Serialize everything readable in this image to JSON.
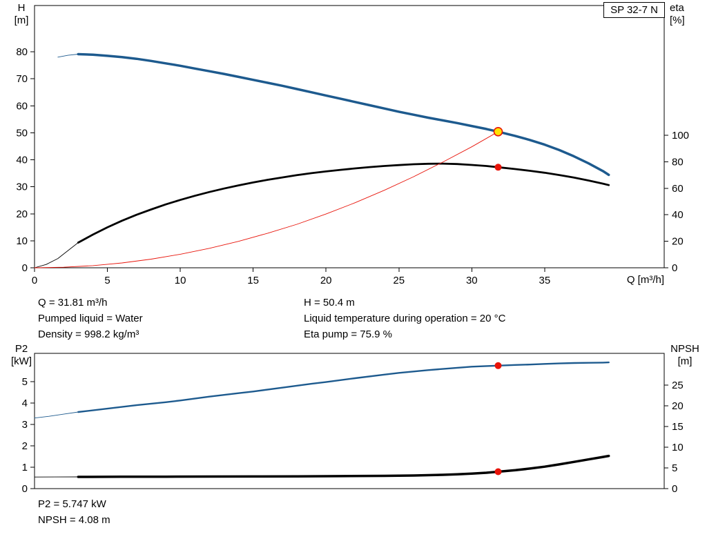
{
  "pump_box": {
    "label": "SP 32-7 N"
  },
  "axis_labels": {
    "h": "H",
    "h_unit": "[m]",
    "eta": "eta",
    "eta_unit": "[%]",
    "q": "Q [m³/h]",
    "p2": "P2",
    "p2_unit": "[kW]",
    "npsh": "NPSH",
    "npsh_unit": "[m]"
  },
  "operating_point_info": {
    "q": "Q = 31.81 m³/h",
    "h": "H = 50.4 m",
    "pumped_liquid": "Pumped liquid = Water",
    "liquid_temp": "Liquid temperature during operation = 20 °C",
    "density": "Density = 998.2 kg/m³",
    "eta_pump": "Eta pump = 75.9 %"
  },
  "power_info": {
    "p2": "P2 = 5.747 kW",
    "npsh": "NPSH = 4.08 m"
  },
  "colors": {
    "curve_blue": "#1d5a8e",
    "curve_red": "#e81309",
    "marker_yellow": "#ffe200",
    "axis": "#000000"
  },
  "chart_data": [
    {
      "name": "hq-eta-chart",
      "type": "line",
      "title": "SP 32-7 N",
      "x_axis": {
        "label": "Q [m³/h]",
        "min": 0,
        "max": 43.2,
        "ticks": [
          0,
          5,
          10,
          15,
          20,
          25,
          30,
          35
        ],
        "show_labels": true
      },
      "left_axis": {
        "label": "H [m]",
        "min": 0,
        "max": 80,
        "ticks": [
          0,
          10,
          20,
          30,
          40,
          50,
          60,
          70,
          80
        ]
      },
      "right_axis": {
        "label": "eta [%]",
        "min": 0,
        "max": 100,
        "ticks": [
          0,
          20,
          40,
          60,
          80,
          100
        ]
      },
      "series": [
        {
          "name": "head",
          "axis": "left",
          "color": "#1d5a8e",
          "width": 3.5,
          "thin_width": 0.9,
          "thin_points": [
            [
              1.6,
              78.0
            ],
            [
              2.3,
              78.7
            ],
            [
              3,
              79.1
            ]
          ],
          "points": [
            [
              3,
              79.1
            ],
            [
              4,
              78.9
            ],
            [
              5,
              78.5
            ],
            [
              6,
              78.0
            ],
            [
              7,
              77.4
            ],
            [
              8,
              76.6
            ],
            [
              9,
              75.7
            ],
            [
              10,
              74.8
            ],
            [
              11,
              73.8
            ],
            [
              12,
              72.8
            ],
            [
              13,
              71.8
            ],
            [
              14,
              70.7
            ],
            [
              15,
              69.6
            ],
            [
              16,
              68.5
            ],
            [
              17,
              67.4
            ],
            [
              18,
              66.2
            ],
            [
              19,
              65.0
            ],
            [
              20,
              63.8
            ],
            [
              21,
              62.6
            ],
            [
              22,
              61.4
            ],
            [
              23,
              60.2
            ],
            [
              24,
              59.0
            ],
            [
              25,
              57.8
            ],
            [
              26,
              56.7
            ],
            [
              27,
              55.6
            ],
            [
              28,
              54.6
            ],
            [
              29,
              53.6
            ],
            [
              30,
              52.5
            ],
            [
              31,
              51.4
            ],
            [
              31.81,
              50.4
            ],
            [
              33,
              48.8
            ],
            [
              34,
              47.3
            ],
            [
              35,
              45.6
            ],
            [
              36,
              43.6
            ],
            [
              37,
              41.3
            ],
            [
              38,
              38.7
            ],
            [
              39,
              35.8
            ],
            [
              39.4,
              34.4
            ]
          ]
        },
        {
          "name": "efficiency",
          "axis": "right",
          "color": "#000000",
          "width": 2.8,
          "thin_width": 0.9,
          "thin_points": [
            [
              0,
              0
            ],
            [
              0.8,
              2.5
            ],
            [
              1.6,
              7
            ],
            [
              2.3,
              13
            ],
            [
              3,
              19
            ]
          ],
          "points": [
            [
              3,
              19
            ],
            [
              4,
              25
            ],
            [
              5,
              30.5
            ],
            [
              6,
              35.5
            ],
            [
              7,
              40
            ],
            [
              8,
              44
            ],
            [
              9,
              47.8
            ],
            [
              10,
              51.2
            ],
            [
              11,
              54.3
            ],
            [
              12,
              57.2
            ],
            [
              13,
              59.8
            ],
            [
              14,
              62.2
            ],
            [
              15,
              64.4
            ],
            [
              16,
              66.4
            ],
            [
              17,
              68.2
            ],
            [
              18,
              69.9
            ],
            [
              19,
              71.4
            ],
            [
              20,
              72.7
            ],
            [
              21,
              73.9
            ],
            [
              22,
              75.0
            ],
            [
              23,
              76.0
            ],
            [
              24,
              76.8
            ],
            [
              25,
              77.5
            ],
            [
              26,
              78.1
            ],
            [
              27,
              78.5
            ],
            [
              28,
              78.6
            ],
            [
              29,
              78.3
            ],
            [
              30,
              77.6
            ],
            [
              31,
              76.8
            ],
            [
              31.81,
              75.9
            ],
            [
              33,
              74.5
            ],
            [
              34,
              73.2
            ],
            [
              35,
              71.7
            ],
            [
              36,
              70.0
            ],
            [
              37,
              68.1
            ],
            [
              38,
              65.9
            ],
            [
              39,
              63.5
            ],
            [
              39.4,
              62.4
            ]
          ]
        },
        {
          "name": "system-curve",
          "axis": "left",
          "color": "#e81309",
          "width": 0.9,
          "points": [
            [
              0,
              0
            ],
            [
              2,
              0.2
            ],
            [
              4,
              0.8
            ],
            [
              6,
              1.8
            ],
            [
              8,
              3.2
            ],
            [
              10,
              5.0
            ],
            [
              12,
              7.2
            ],
            [
              14,
              9.8
            ],
            [
              16,
              12.8
            ],
            [
              18,
              16.1
            ],
            [
              20,
              19.9
            ],
            [
              22,
              24.1
            ],
            [
              24,
              28.7
            ],
            [
              26,
              33.7
            ],
            [
              28,
              39.1
            ],
            [
              30,
              44.8
            ],
            [
              31.81,
              50.4
            ]
          ]
        }
      ],
      "markers": [
        {
          "name": "duty-point-marker",
          "axis": "left",
          "x": 31.81,
          "y": 50.4,
          "r": 6,
          "fill": "#ffe200",
          "stroke": "#e81309",
          "stroke_width": 1.6,
          "interactable": true
        },
        {
          "name": "eta-point-marker",
          "axis": "right",
          "x": 31.81,
          "y": 75.9,
          "r": 5,
          "fill": "#e81309",
          "interactable": false
        }
      ]
    },
    {
      "name": "p2-npsh-chart",
      "type": "line",
      "x_axis": {
        "label": "Q [m³/h]",
        "min": 0,
        "max": 43.2,
        "ticks": [
          0,
          5,
          10,
          15,
          20,
          25,
          30,
          35
        ],
        "show_labels": false
      },
      "left_axis": {
        "label": "P2 [kW]",
        "min": 0,
        "max": 6.3,
        "ticks": [
          0,
          1,
          2,
          3,
          4,
          5
        ]
      },
      "right_axis": {
        "label": "NPSH [m]",
        "min": 0,
        "max": 32,
        "ticks": [
          0,
          5,
          10,
          15,
          20,
          25
        ]
      },
      "series": [
        {
          "name": "p2",
          "axis": "left",
          "color": "#1d5a8e",
          "width": 2.4,
          "thin_width": 0.9,
          "thin_points": [
            [
              0,
              3.3
            ],
            [
              1,
              3.38
            ],
            [
              2,
              3.48
            ],
            [
              3,
              3.58
            ]
          ],
          "points": [
            [
              3,
              3.58
            ],
            [
              5,
              3.74
            ],
            [
              7,
              3.9
            ],
            [
              9,
              4.04
            ],
            [
              10,
              4.12
            ],
            [
              12,
              4.3
            ],
            [
              14,
              4.46
            ],
            [
              15,
              4.54
            ],
            [
              17,
              4.72
            ],
            [
              19,
              4.9
            ],
            [
              20,
              4.98
            ],
            [
              22,
              5.16
            ],
            [
              24,
              5.33
            ],
            [
              25,
              5.41
            ],
            [
              27,
              5.54
            ],
            [
              29,
              5.65
            ],
            [
              30,
              5.7
            ],
            [
              31,
              5.73
            ],
            [
              31.81,
              5.75
            ],
            [
              33,
              5.78
            ],
            [
              34,
              5.8
            ],
            [
              35,
              5.83
            ],
            [
              36,
              5.85
            ],
            [
              37,
              5.87
            ],
            [
              38,
              5.88
            ],
            [
              39,
              5.89
            ],
            [
              39.4,
              5.9
            ]
          ]
        },
        {
          "name": "npsh",
          "axis": "right",
          "color": "#000000",
          "width": 3.5,
          "thin_width": 0.9,
          "thin_points": [
            [
              0,
              2.8
            ],
            [
              1.5,
              2.82
            ],
            [
              3,
              2.84
            ]
          ],
          "points": [
            [
              3,
              2.84
            ],
            [
              6,
              2.87
            ],
            [
              9,
              2.89
            ],
            [
              12,
              2.91
            ],
            [
              15,
              2.94
            ],
            [
              18,
              2.97
            ],
            [
              21,
              3.01
            ],
            [
              24,
              3.08
            ],
            [
              26,
              3.17
            ],
            [
              28,
              3.33
            ],
            [
              29,
              3.45
            ],
            [
              30,
              3.62
            ],
            [
              31,
              3.84
            ],
            [
              31.81,
              4.08
            ],
            [
              33,
              4.45
            ],
            [
              34,
              4.85
            ],
            [
              35,
              5.3
            ],
            [
              36,
              5.85
            ],
            [
              37,
              6.45
            ],
            [
              38,
              7.05
            ],
            [
              39,
              7.65
            ],
            [
              39.4,
              7.9
            ]
          ]
        }
      ],
      "markers": [
        {
          "name": "p2-point-marker",
          "axis": "left",
          "x": 31.81,
          "y": 5.747,
          "r": 5,
          "fill": "#e81309",
          "interactable": false
        },
        {
          "name": "npsh-point-marker",
          "axis": "right",
          "x": 31.81,
          "y": 4.08,
          "r": 5,
          "fill": "#e81309",
          "interactable": false
        }
      ]
    }
  ]
}
